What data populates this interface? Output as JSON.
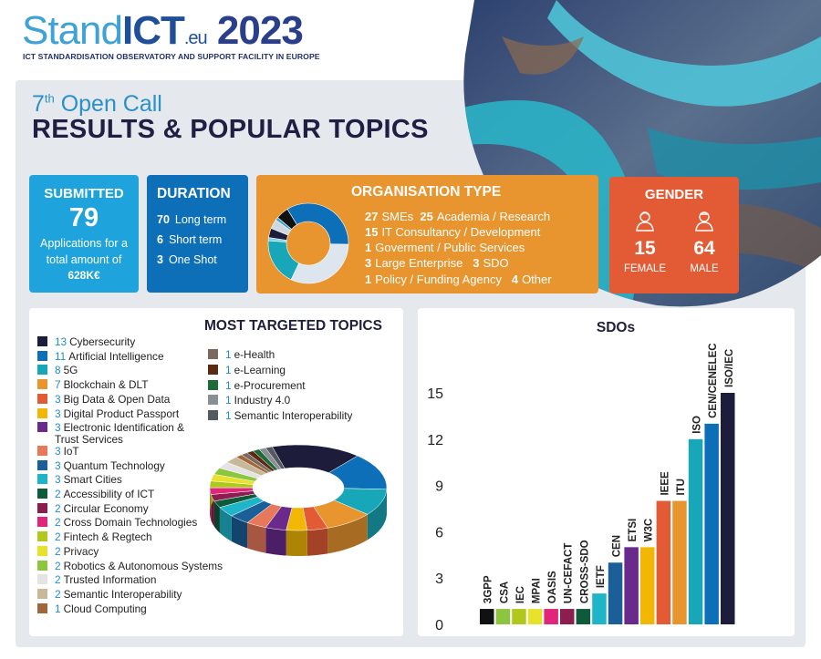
{
  "logo": {
    "brand_a": "Stand",
    "brand_b": "ICT",
    "brand_c": ".eu",
    "year": "2023",
    "subtitle": "ICT STANDARDISATION OBSERVATORY AND SUPPORT FACILITY IN EUROPE"
  },
  "call": {
    "num": "7",
    "ordinal": "th",
    "text": " Open Call"
  },
  "title": "RESULTS & POPULAR TOPICS",
  "submitted": {
    "heading": "SUBMITTED",
    "count": "79",
    "desc1": "Applications for a",
    "desc2": "total amount of",
    "amount": "628K€"
  },
  "duration": {
    "heading": "DURATION",
    "rows": [
      {
        "n": "70",
        "label": "Long term"
      },
      {
        "n": "6",
        "label": "Short term"
      },
      {
        "n": "3",
        "label": "One Shot"
      }
    ]
  },
  "org": {
    "heading": "ORGANISATION TYPE",
    "lines": [
      [
        {
          "n": "27",
          "t": "SMEs"
        },
        {
          "n": "25",
          "t": "Academia / Research"
        }
      ],
      [
        {
          "n": "15",
          "t": "IT Consultancy / Development"
        }
      ],
      [
        {
          "n": "1",
          "t": "Goverment / Public Services"
        }
      ],
      [
        {
          "n": "3",
          "t": "Large Enterprise"
        },
        {
          "n": "3",
          "t": "SDO"
        }
      ],
      [
        {
          "n": "1",
          "t": "Policy / Funding Agency"
        },
        {
          "n": "4",
          "t": "Other"
        }
      ]
    ],
    "donut": [
      {
        "v": 27,
        "color": "#0d6fb8"
      },
      {
        "v": 25,
        "color": "#dde6ee"
      },
      {
        "v": 15,
        "color": "#17a7b8"
      },
      {
        "v": 1,
        "color": "#7fd0e6"
      },
      {
        "v": 3,
        "color": "#1d1d3b"
      },
      {
        "v": 3,
        "color": "#cfd8df"
      },
      {
        "v": 1,
        "color": "#3ea2d6"
      },
      {
        "v": 4,
        "color": "#111111"
      }
    ]
  },
  "gender": {
    "heading": "GENDER",
    "female": {
      "count": "15",
      "label": "FEMALE"
    },
    "male": {
      "count": "64",
      "label": "MALE"
    }
  },
  "topics": {
    "heading": "MOST TARGETED TOPICS",
    "left": [
      {
        "n": "13",
        "t": "Cybersecurity",
        "c": "#1d1d3b"
      },
      {
        "n": "11",
        "t": "Artificial Intelligence",
        "c": "#0d6fb8"
      },
      {
        "n": "8",
        "t": "5G",
        "c": "#17a7b8"
      },
      {
        "n": "7",
        "t": "Blockchain & DLT",
        "c": "#e8952f"
      },
      {
        "n": "3",
        "t": "Big Data & Open Data",
        "c": "#e35b35"
      },
      {
        "n": "3",
        "t": "Digital Product Passport",
        "c": "#f2b705"
      },
      {
        "n": "3",
        "t": "Electronic Identification &",
        "t2": "Trust Services",
        "c": "#6a2a8c"
      },
      {
        "n": "3",
        "t": "IoT",
        "c": "#e8785a"
      },
      {
        "n": "3",
        "t": "Quantum Technology",
        "c": "#1a5f98"
      },
      {
        "n": "3",
        "t": "Smart Cities",
        "c": "#1fb5c9"
      },
      {
        "n": "2",
        "t": "Accessibility of ICT",
        "c": "#0f5a3a"
      },
      {
        "n": "2",
        "t": "Circular Economy",
        "c": "#8b1e4f"
      },
      {
        "n": "2",
        "t": "Cross Domain Technologies",
        "c": "#e0257a"
      },
      {
        "n": "2",
        "t": "Fintech & Regtech",
        "c": "#b0c81e"
      },
      {
        "n": "2",
        "t": "Privacy",
        "c": "#e9e22a"
      },
      {
        "n": "2",
        "t": "Robotics & Autonomous Systems",
        "c": "#8cc63f"
      },
      {
        "n": "2",
        "t": "Trusted Information",
        "c": "#e4e4e4"
      },
      {
        "n": "2",
        "t": "Semantic Interoperability",
        "c": "#c8b89a"
      },
      {
        "n": "1",
        "t": "Cloud Computing",
        "c": "#a0673a"
      }
    ],
    "right": [
      {
        "n": "1",
        "t": "e-Health",
        "c": "#7a6a5e"
      },
      {
        "n": "1",
        "t": "e-Learning",
        "c": "#5c2a12"
      },
      {
        "n": "1",
        "t": "e-Procurement",
        "c": "#1e6b3a"
      },
      {
        "n": "1",
        "t": "Industry 4.0",
        "c": "#8a8f94"
      },
      {
        "n": "1",
        "t": "Semantic Interoperability",
        "c": "#555a5e"
      }
    ]
  },
  "chart_data": {
    "type": "bar",
    "title": "SDOs",
    "categories": [
      "3GPP",
      "CSA",
      "IEC",
      "MPAI",
      "OASIS",
      "UN-CEFACT",
      "CROSS-SDO",
      "IETF",
      "CEN",
      "ETSI",
      "W3C",
      "IEEE",
      "ITU",
      "ISO",
      "CEN/CENELEC",
      "ISO/IEC"
    ],
    "values": [
      1,
      1,
      1,
      1,
      1,
      1,
      1,
      2,
      4,
      5,
      5,
      8,
      8,
      12,
      13,
      15
    ],
    "colors": [
      "#111111",
      "#8cc63f",
      "#b0c81e",
      "#e9e22a",
      "#e0257a",
      "#8b1e4f",
      "#0f5a3a",
      "#1fb5c9",
      "#1a5f98",
      "#6a2a8c",
      "#f2b705",
      "#e35b35",
      "#e8952f",
      "#17a7b8",
      "#0d6fb8",
      "#1d1d3b"
    ],
    "yticks": [
      0,
      3,
      6,
      9,
      12,
      15
    ],
    "ylim": [
      0,
      15
    ],
    "xlabel": "",
    "ylabel": ""
  }
}
